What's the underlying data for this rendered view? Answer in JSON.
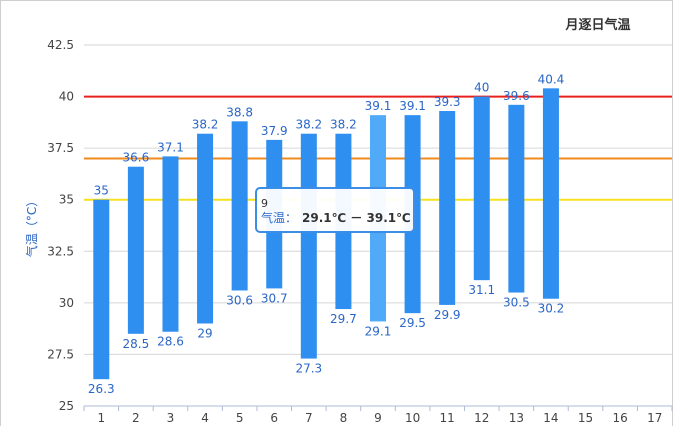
{
  "chart_data": {
    "type": "bar",
    "title": "月逐日气温",
    "ylabel": "气温（°C）",
    "xlabel": "",
    "ylim": [
      25,
      42.5
    ],
    "yticks": [
      25,
      27.5,
      30,
      32.5,
      35,
      37.5,
      40,
      42.5
    ],
    "categories": [
      "1",
      "2",
      "3",
      "4",
      "5",
      "6",
      "7",
      "8",
      "9",
      "10",
      "11",
      "12",
      "13",
      "14",
      "15",
      "16",
      "17"
    ],
    "low": [
      26.3,
      28.5,
      28.6,
      29,
      30.6,
      30.7,
      27.3,
      29.7,
      29.1,
      29.5,
      29.9,
      31.1,
      30.5,
      30.2,
      null,
      null,
      null
    ],
    "high": [
      35,
      36.6,
      37.1,
      38.2,
      38.8,
      37.9,
      38.2,
      38.2,
      39.1,
      39.1,
      39.3,
      40,
      39.6,
      40.4,
      null,
      null,
      null
    ],
    "highlighted_index": 8,
    "reference_lines": [
      {
        "value": 40,
        "color": "#e8211d"
      },
      {
        "value": 37,
        "color": "#f08a1c"
      },
      {
        "value": 35,
        "color": "#f7e01e"
      }
    ],
    "bar_color": "#2f8ff0",
    "bar_highlight_color": "#51aaf7",
    "label_color": "#2a66c7",
    "grid": true,
    "tooltip": {
      "title": "9",
      "series_label": "气温：",
      "value_text": "29.1℃ － 39.1℃"
    }
  }
}
